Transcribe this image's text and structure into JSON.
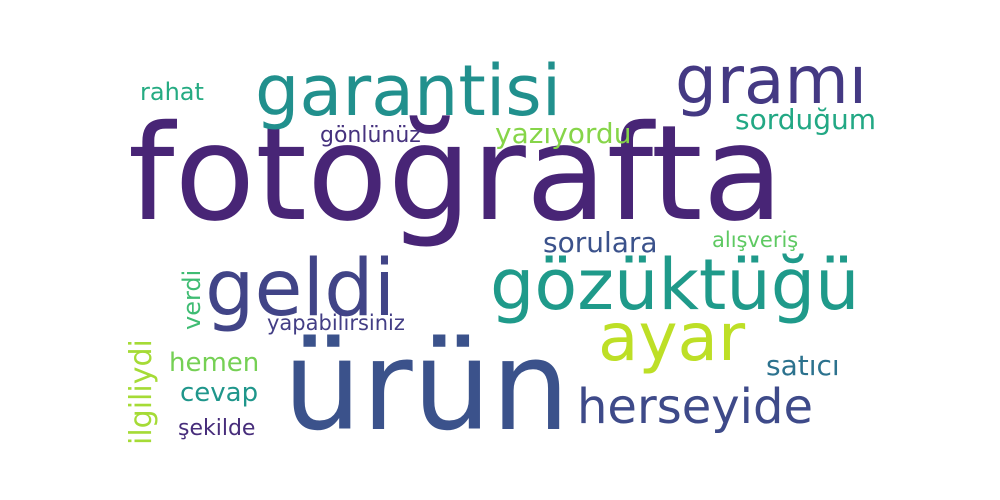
{
  "cloud": {
    "words": {
      "fotografta": {
        "text": "fotoğrafta",
        "color": "#482576"
      },
      "urun": {
        "text": "ürün",
        "color": "#3b528b"
      },
      "garantisi": {
        "text": "garantisi",
        "color": "#21908d"
      },
      "grami": {
        "text": "gramı",
        "color": "#443983"
      },
      "gozuktugu": {
        "text": "gözüktüğü",
        "color": "#1f9a8a"
      },
      "geldi": {
        "text": "geldi",
        "color": "#414487"
      },
      "ayar": {
        "text": "ayar",
        "color": "#bddf26"
      },
      "herseyide": {
        "text": "herseyide",
        "color": "#3e4a89"
      },
      "sordugum": {
        "text": "sorduğum",
        "color": "#22a884"
      },
      "yaziyordu": {
        "text": "yazıyordu",
        "color": "#86d549"
      },
      "gonlunuz": {
        "text": "gönlünüz",
        "color": "#46327e"
      },
      "sorulara": {
        "text": "sorulara",
        "color": "#3b528b"
      },
      "alisveris": {
        "text": "alışveriş",
        "color": "#5ec962"
      },
      "yapabilirsiniz": {
        "text": "yapabilirsiniz",
        "color": "#433e85"
      },
      "satici": {
        "text": "satıcı",
        "color": "#2c728e"
      },
      "hemen": {
        "text": "hemen",
        "color": "#75d054"
      },
      "cevap": {
        "text": "cevap",
        "color": "#1f968b"
      },
      "sekilde": {
        "text": "şekilde",
        "color": "#472d7b"
      },
      "rahat": {
        "text": "rahat",
        "color": "#25ab82"
      },
      "ilgiliydi": {
        "text": "ilgiliydi",
        "color": "#a5db36"
      },
      "verdi": {
        "text": "verdi",
        "color": "#3fbc73"
      }
    }
  }
}
